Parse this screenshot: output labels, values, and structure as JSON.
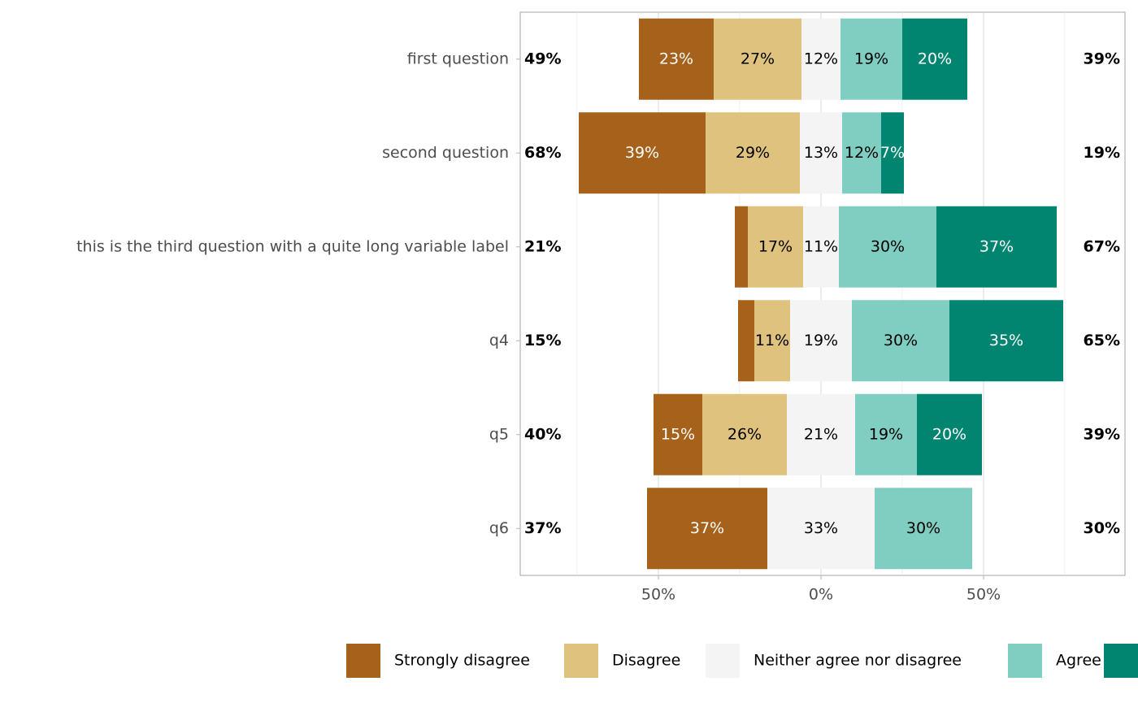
{
  "chart_data": {
    "type": "diverging-bar",
    "categories": [
      "first question",
      "second question",
      "this is the third question with a quite long variable label",
      "q4",
      "q5",
      "q6"
    ],
    "series": [
      {
        "name": "Strongly disagree",
        "color": "#a6611a",
        "label_color": "#ffffff",
        "values": [
          23,
          39,
          4,
          5,
          15,
          37
        ],
        "value_labels": [
          "23%",
          "39%",
          null,
          null,
          "15%",
          "37%"
        ]
      },
      {
        "name": "Disagree",
        "color": "#dfc27d",
        "label_color": "#000000",
        "values": [
          27,
          29,
          17,
          11,
          26,
          0
        ],
        "value_labels": [
          "27%",
          "29%",
          "17%",
          "11%",
          "26%",
          null
        ]
      },
      {
        "name": "Neither agree nor disagree",
        "color": "#f4f4f4",
        "label_color": "#000000",
        "values": [
          12,
          13,
          11,
          19,
          21,
          33
        ],
        "value_labels": [
          "12%",
          "13%",
          "11%",
          "19%",
          "21%",
          "33%"
        ]
      },
      {
        "name": "Agree",
        "color": "#80cdc1",
        "label_color": "#000000",
        "values": [
          19,
          12,
          30,
          30,
          19,
          30
        ],
        "value_labels": [
          "19%",
          "12%",
          "30%",
          "30%",
          "19%",
          "30%"
        ]
      },
      {
        "name": null,
        "color": "#018571",
        "label_color": "#ffffff",
        "values": [
          20,
          7,
          37,
          35,
          20,
          0
        ],
        "value_labels": [
          "20%",
          "7%",
          "37%",
          "35%",
          "20%",
          null
        ]
      }
    ],
    "totals_left": {
      "values": [
        49,
        68,
        21,
        15,
        40,
        37
      ],
      "value_labels": [
        "49%",
        "68%",
        "21%",
        "15%",
        "40%",
        "37%"
      ]
    },
    "totals_right": {
      "values": [
        39,
        19,
        67,
        65,
        39,
        30
      ],
      "value_labels": [
        "39%",
        "19%",
        "67%",
        "65%",
        "39%",
        "30%"
      ]
    },
    "xlim": [
      -92.5,
      93.5
    ],
    "xticks": [
      {
        "value": -50,
        "label": "50%"
      },
      {
        "value": 0,
        "label": "0%"
      },
      {
        "value": 50,
        "label": "50%"
      }
    ],
    "minor_xticks": [
      -75,
      -25,
      25,
      75
    ],
    "grid": true,
    "legend": "bottom"
  }
}
